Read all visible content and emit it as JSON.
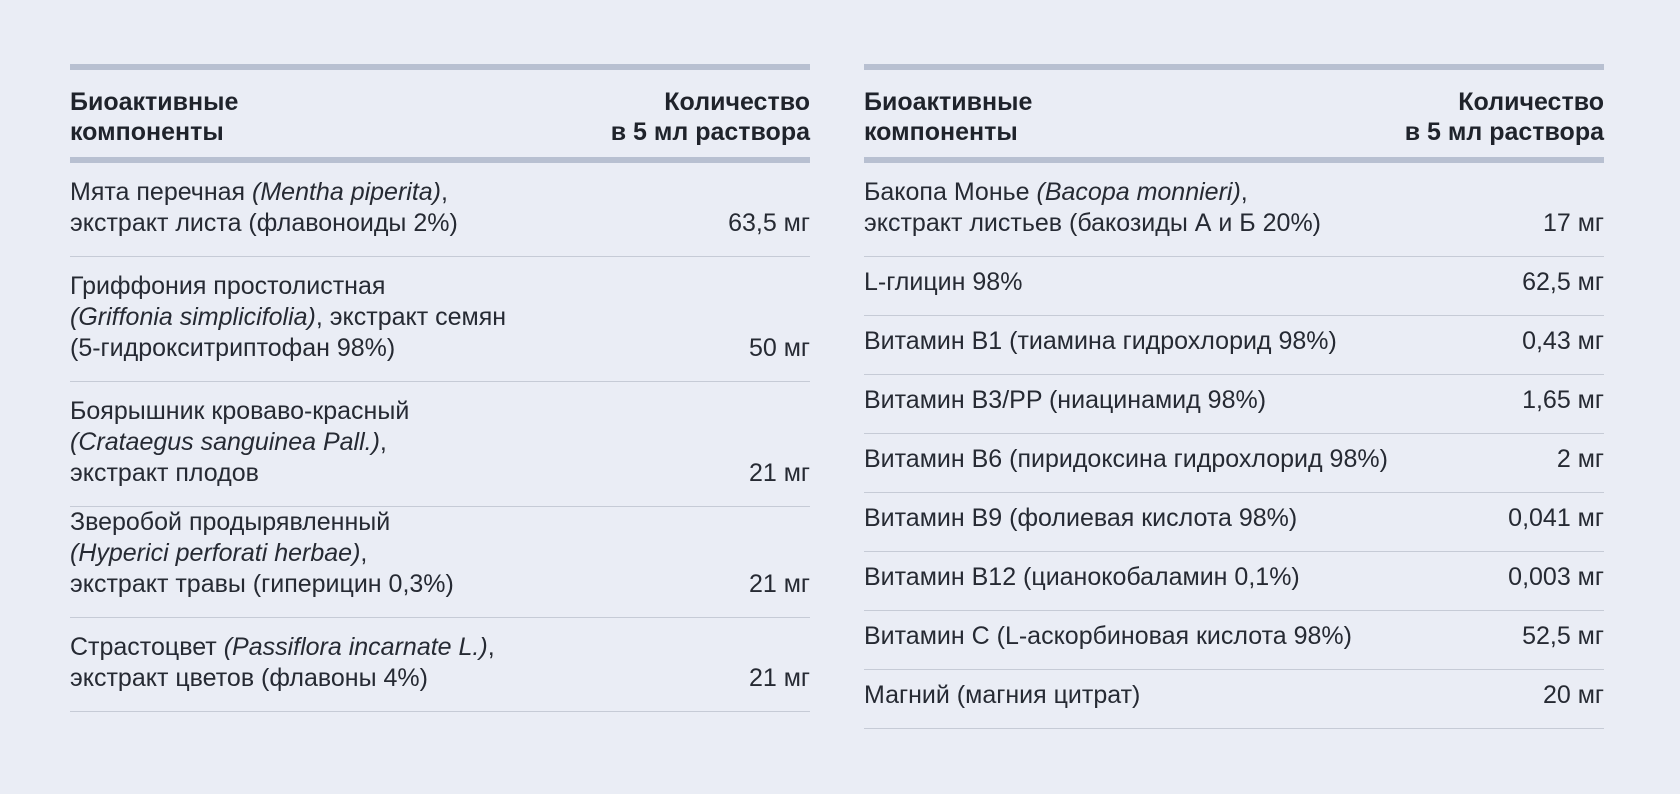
{
  "left_table": {
    "header": {
      "name": "Биоактивные\nкомпоненты",
      "quantity": "Количество\nв 5 мл раствора"
    },
    "rows": [
      {
        "lines": [
          {
            "plain": "Мята перечная ",
            "italic": "(Mentha piperita)",
            "tail": ","
          },
          {
            "plain": "экстракт листа (флавоноиды 2%)",
            "italic": "",
            "tail": ""
          }
        ],
        "quantity": "63,5 мг"
      },
      {
        "lines": [
          {
            "plain": "Гриффония простолистная",
            "italic": "",
            "tail": ""
          },
          {
            "plain": "",
            "italic": "(Griffonia simplicifolia)",
            "tail": ", экстракт семян"
          },
          {
            "plain": "(5-гидрокситриптофан 98%)",
            "italic": "",
            "tail": ""
          }
        ],
        "quantity": "50 мг"
      },
      {
        "lines": [
          {
            "plain": "Боярышник кроваво-красный",
            "italic": "",
            "tail": ""
          },
          {
            "plain": "",
            "italic": "(Crataegus sanguinea Pall.)",
            "tail": ","
          },
          {
            "plain": "экстракт плодов",
            "italic": "",
            "tail": ""
          }
        ],
        "quantity": "21 мг"
      },
      {
        "lines": [
          {
            "plain": "Зверобой продырявленный",
            "italic": "",
            "tail": ""
          },
          {
            "plain": "",
            "italic": "(Hyperici perforati herbae)",
            "tail": ","
          },
          {
            "plain": "экстракт травы (гиперицин 0,3%)",
            "italic": "",
            "tail": ""
          }
        ],
        "quantity": "21 мг"
      },
      {
        "lines": [
          {
            "plain": "Страстоцвет ",
            "italic": "(Passiflora incarnate L.)",
            "tail": ","
          },
          {
            "plain": "экстракт цветов (флавоны 4%)",
            "italic": "",
            "tail": ""
          }
        ],
        "quantity": "21 мг"
      }
    ]
  },
  "right_table": {
    "header": {
      "name": "Биоактивные\nкомпоненты",
      "quantity": "Количество\nв 5 мл раствора"
    },
    "rows": [
      {
        "lines": [
          {
            "plain": "Бакопа Монье ",
            "italic": "(Bacopa monnieri)",
            "tail": ","
          },
          {
            "plain": "экстракт листьев (бакозиды А и Б 20%)",
            "italic": "",
            "tail": ""
          }
        ],
        "quantity": "17 мг"
      },
      {
        "lines": [
          {
            "plain": "L-глицин 98%",
            "italic": "",
            "tail": ""
          }
        ],
        "quantity": "62,5 мг"
      },
      {
        "lines": [
          {
            "plain": "Витамин B1 (тиамина гидрохлорид 98%)",
            "italic": "",
            "tail": ""
          }
        ],
        "quantity": "0,43 мг"
      },
      {
        "lines": [
          {
            "plain": "Витамин B3/PP (ниацинамид 98%)",
            "italic": "",
            "tail": ""
          }
        ],
        "quantity": "1,65 мг"
      },
      {
        "lines": [
          {
            "plain": "Витамин B6 (пиридоксина гидрохлорид 98%)",
            "italic": "",
            "tail": ""
          }
        ],
        "quantity": "2 мг"
      },
      {
        "lines": [
          {
            "plain": "Витамин B9 (фолиевая кислота 98%)",
            "italic": "",
            "tail": ""
          }
        ],
        "quantity": "0,041 мг"
      },
      {
        "lines": [
          {
            "plain": "Витамин B12 (цианокобаламин 0,1%)",
            "italic": "",
            "tail": ""
          }
        ],
        "quantity": "0,003 мг"
      },
      {
        "lines": [
          {
            "plain": "Витамин C (L-аскорбиновая кислота 98%)",
            "italic": "",
            "tail": ""
          }
        ],
        "quantity": "52,5 мг"
      },
      {
        "lines": [
          {
            "plain": "Магний (магния цитрат)",
            "italic": "",
            "tail": ""
          }
        ],
        "quantity": "20 мг"
      }
    ]
  }
}
